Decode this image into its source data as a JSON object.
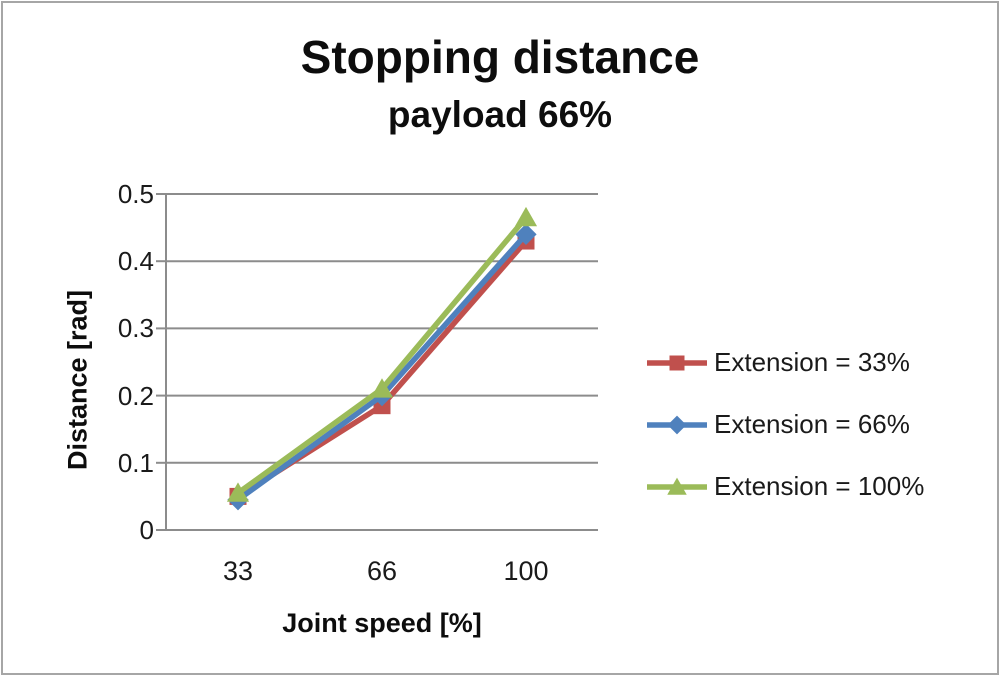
{
  "window": {
    "background_color": "#ffffff",
    "frame_border_color": "#a6a6a6"
  },
  "chart_data": {
    "type": "line",
    "title": "Stopping distance",
    "subtitle": "payload 66%",
    "xlabel": "Joint speed [%]",
    "ylabel": "Distance [rad]",
    "categories": [
      "33",
      "66",
      "100"
    ],
    "x_values": [
      33,
      66,
      100
    ],
    "ylim": [
      0,
      0.5
    ],
    "y_ticks": [
      0,
      0.1,
      0.2,
      0.3,
      0.4,
      0.5
    ],
    "y_tick_labels": [
      "0",
      "0.1",
      "0.2",
      "0.3",
      "0.4",
      "0.5"
    ],
    "grid": "horizontal-on",
    "legend_position": "right",
    "axis_color": "#8c8c8c",
    "gridline_color": "#8c8c8c",
    "series": [
      {
        "name": "Extension = 33%",
        "color": "#c0504d",
        "marker": "square",
        "values": [
          0.05,
          0.185,
          0.43
        ]
      },
      {
        "name": "Extension = 66%",
        "color": "#4f81bd",
        "marker": "diamond",
        "values": [
          0.045,
          0.2,
          0.44
        ]
      },
      {
        "name": "Extension = 100%",
        "color": "#9bbb59",
        "marker": "triangle",
        "values": [
          0.055,
          0.21,
          0.465
        ]
      }
    ]
  }
}
